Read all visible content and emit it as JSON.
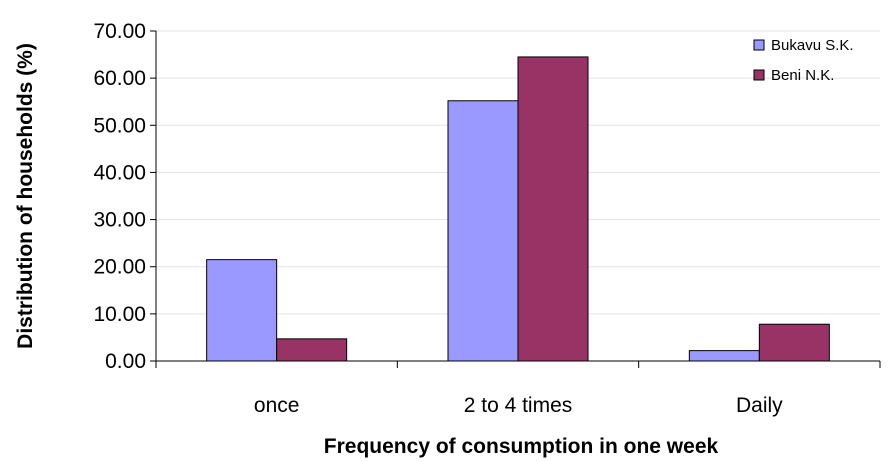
{
  "chart_data": {
    "type": "bar",
    "title": "",
    "xlabel": "Frequency of consumption in one week",
    "ylabel": "Distribution of households (%)",
    "categories": [
      "once",
      "2 to 4 times",
      "Daily"
    ],
    "series": [
      {
        "name": "Bukavu S.K.",
        "color": "#9999ff",
        "values": [
          21.5,
          55.2,
          2.2
        ]
      },
      {
        "name": "Beni N.K.",
        "color": "#993366",
        "values": [
          4.7,
          64.5,
          7.8
        ]
      }
    ],
    "ylim": [
      0,
      70
    ],
    "yticks": [
      "0.00",
      "10.00",
      "20.00",
      "30.00",
      "40.00",
      "50.00",
      "60.00",
      "70.00"
    ],
    "grid": true,
    "legend": "top-right"
  }
}
